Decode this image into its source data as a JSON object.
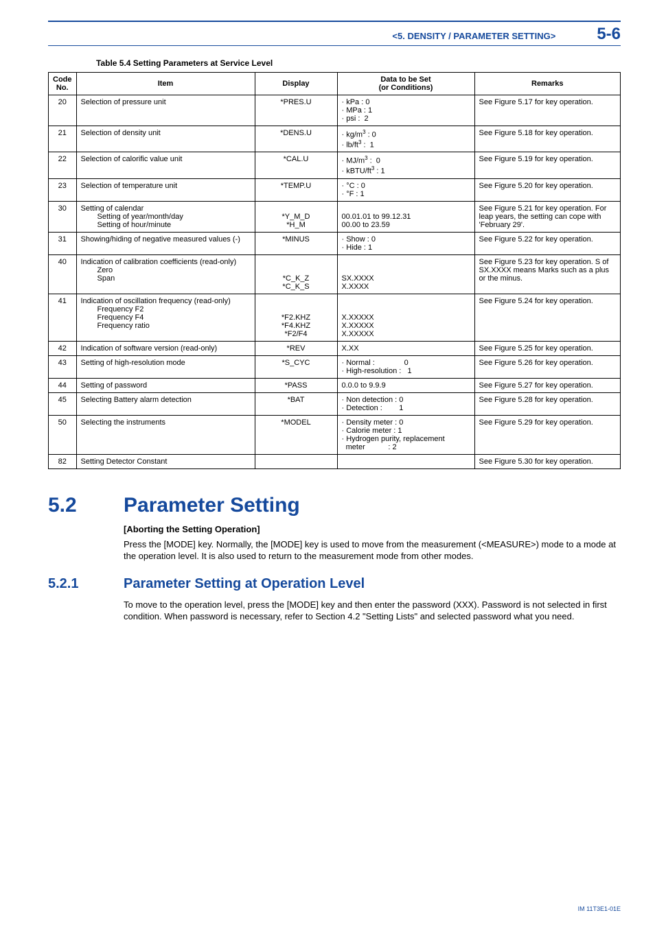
{
  "header": {
    "title": "<5. DENSITY / PARAMETER SETTING>",
    "page": "5-6"
  },
  "table": {
    "caption": "Table 5.4 Setting Parameters at Service Level",
    "columns": [
      "Code No.",
      "Item",
      "Display",
      "Data to be Set (or Conditions)",
      "Remarks"
    ],
    "rows": [
      {
        "code": "20",
        "item": "Selection of pressure unit",
        "display": "*PRES.U",
        "data": "· kPa : 0\n· MPa : 1\n· psi : 2",
        "remarks": "See Figure 5.17 for key operation."
      },
      {
        "code": "21",
        "item": "Selection of density unit",
        "display": "*DENS.U",
        "data": "· kg/m³ : 0\n· lb/ft³ : 1",
        "remarks": "See Figure 5.18 for key operation."
      },
      {
        "code": "22",
        "item": "Selection of calorific value unit",
        "display": "*CAL.U",
        "data": "· MJ/m³ : 0\n· kBTU/ft³ : 1",
        "remarks": "See Figure 5.19 for key operation."
      },
      {
        "code": "23",
        "item": "Selection of temperature unit",
        "display": "*TEMP.U",
        "data": "· °C : 0\n· °F : 1",
        "remarks": "See Figure 5.20 for key operation."
      },
      {
        "code": "30",
        "item": "Setting of calendar",
        "item_sub": [
          "Setting of year/month/day",
          "Setting of hour/minute"
        ],
        "display": "*Y_M_D\n*H_M",
        "data": "00.01.01 to 99.12.31\n00.00 to 23.59",
        "remarks": "See Figure 5.21 for key operation. For leap years, the setting can cope with 'February 29'."
      },
      {
        "code": "31",
        "item": "Showing/hiding of negative measured values (-)",
        "display": "*MINUS",
        "data": "· Show : 0\n· Hide : 1",
        "remarks": "See Figure 5.22 for key operation."
      },
      {
        "code": "40",
        "item": "Indication of calibration coefficients (read-only)",
        "item_sub": [
          "Zero",
          "Span"
        ],
        "display": "*C_K_Z\n*C_K_S",
        "data": "SX.XXXX\nX.XXXX",
        "remarks": "See Figure 5.23 for key operation. S of SX.XXXX means Marks such as a plus or the minus."
      },
      {
        "code": "41",
        "item": "Indication of oscillation frequency (read-only)",
        "item_sub": [
          "Frequency F2",
          "Frequency F4",
          "Frequency ratio"
        ],
        "display": "*F2.KHZ\n*F4.KHZ\n*F2/F4",
        "data": "X.XXXXX\nX.XXXXX\nX.XXXXX",
        "remarks": "See Figure 5.24 for key operation."
      },
      {
        "code": "42",
        "item": "Indication of software version (read-only)",
        "display": "*REV",
        "data": "X.XX",
        "remarks": "See Figure 5.25 for key operation."
      },
      {
        "code": "43",
        "item": "Setting of high-resolution mode",
        "display": "*S_CYC",
        "data": "· Normal :              0\n· High-resolution :   1",
        "remarks": "See Figure 5.26 for key operation."
      },
      {
        "code": "44",
        "item": "Setting of password",
        "display": "*PASS",
        "data": "0.0.0 to 9.9.9",
        "remarks": "See Figure 5.27 for key operation."
      },
      {
        "code": "45",
        "item": "Selecting Battery alarm detection",
        "display": "*BAT",
        "data": "· Non detection : 0\n· Detection :        1",
        "remarks": "See Figure 5.28 for key operation."
      },
      {
        "code": "50",
        "item": "Selecting the instruments",
        "display": "*MODEL",
        "data": "· Density meter : 0\n· Calorie meter : 1\n· Hydrogen purity, replacement meter           : 2",
        "remarks": "See Figure 5.29 for key operation."
      },
      {
        "code": "82",
        "item": "Setting Detector Constant",
        "display": "",
        "data": "",
        "remarks": "See Figure 5.30 for key operation."
      }
    ]
  },
  "section": {
    "number": "5.2",
    "title": "Parameter Setting",
    "sub_heading": "[Aborting the Setting Operation]",
    "paragraph": "Press the [MODE] key. Normally, the [MODE] key is used to move from the measurement (<MEASURE>) mode to a mode at the operation level. It is also used to return to the measurement mode from other modes."
  },
  "subsection": {
    "number": "5.2.1",
    "title": "Parameter Setting at Operation Level",
    "paragraph": "To move to the operation level, press the [MODE] key and then enter the password (XXX). Password is not selected in first condition. When password is necessary, refer to Section 4.2 \"Setting Lists\" and selected password what you need."
  },
  "footer": "IM 11T3E1-01E"
}
